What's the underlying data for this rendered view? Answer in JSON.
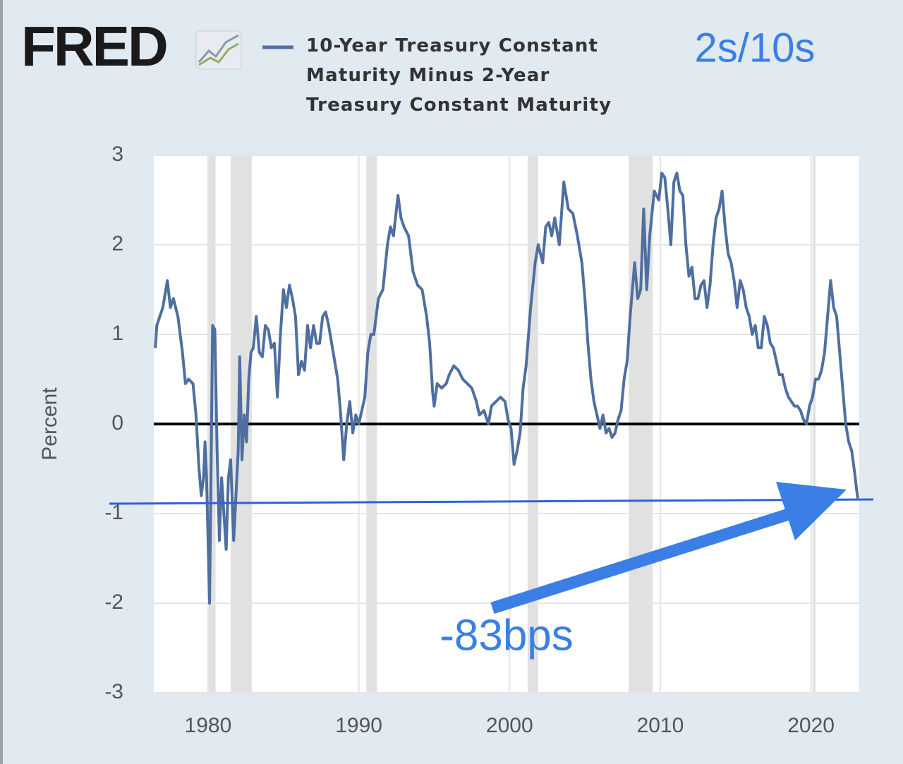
{
  "chart_data": {
    "type": "line",
    "logo": "FRED",
    "annotations": [
      "2s/10s",
      "-83bps"
    ],
    "ylabel": "Percent",
    "xlim": [
      1976.4,
      2023.2
    ],
    "ylim": [
      -3,
      3
    ],
    "xticks": [
      1980,
      1990,
      2000,
      2010,
      2020
    ],
    "yticks": [
      -3,
      -2,
      -1,
      0,
      1,
      2,
      3
    ],
    "grid": true,
    "zero_line": true,
    "recession_color": "#e1e1e1",
    "recessions": [
      [
        1980.0,
        1980.5
      ],
      [
        1981.5,
        1982.9
      ],
      [
        1990.5,
        1991.2
      ],
      [
        2001.2,
        2001.9
      ],
      [
        2007.9,
        2009.5
      ],
      [
        2020.1,
        2020.3
      ]
    ],
    "x": [
      1976.5,
      1976.6,
      1977.0,
      1977.3,
      1977.5,
      1977.7,
      1978.0,
      1978.3,
      1978.5,
      1978.7,
      1979.0,
      1979.2,
      1979.4,
      1979.55,
      1979.7,
      1979.8,
      1979.9,
      1980.0,
      1980.1,
      1980.2,
      1980.3,
      1980.45,
      1980.6,
      1980.75,
      1980.9,
      1981.05,
      1981.2,
      1981.35,
      1981.5,
      1981.7,
      1981.85,
      1982.0,
      1982.1,
      1982.25,
      1982.4,
      1982.55,
      1982.7,
      1982.85,
      1983.0,
      1983.2,
      1983.4,
      1983.6,
      1983.8,
      1984.0,
      1984.2,
      1984.4,
      1984.6,
      1984.8,
      1985.0,
      1985.2,
      1985.4,
      1985.6,
      1985.8,
      1986.0,
      1986.2,
      1986.4,
      1986.6,
      1986.8,
      1987.0,
      1987.2,
      1987.4,
      1987.6,
      1987.8,
      1988.0,
      1988.2,
      1988.4,
      1988.6,
      1988.8,
      1989.0,
      1989.2,
      1989.4,
      1989.6,
      1989.8,
      1990.0,
      1990.2,
      1990.4,
      1990.6,
      1990.8,
      1991.0,
      1991.3,
      1991.6,
      1991.9,
      1992.1,
      1992.3,
      1992.6,
      1992.8,
      1993.0,
      1993.3,
      1993.6,
      1993.9,
      1994.2,
      1994.5,
      1994.7,
      1994.9,
      1995.0,
      1995.2,
      1995.5,
      1995.8,
      1996.0,
      1996.3,
      1996.6,
      1996.9,
      1997.2,
      1997.5,
      1997.8,
      1998.0,
      1998.3,
      1998.6,
      1998.8,
      1999.1,
      1999.4,
      1999.7,
      1999.9,
      2000.1,
      2000.3,
      2000.5,
      2000.7,
      2000.9,
      2001.1,
      2001.4,
      2001.7,
      2001.9,
      2002.2,
      2002.4,
      2002.6,
      2002.8,
      2003.0,
      2003.3,
      2003.6,
      2003.9,
      2004.2,
      2004.5,
      2004.8,
      2005.0,
      2005.2,
      2005.4,
      2005.6,
      2005.8,
      2006.0,
      2006.2,
      2006.4,
      2006.6,
      2006.8,
      2007.0,
      2007.2,
      2007.4,
      2007.6,
      2007.8,
      2008.0,
      2008.3,
      2008.5,
      2008.7,
      2008.9,
      2009.1,
      2009.3,
      2009.6,
      2009.9,
      2010.1,
      2010.3,
      2010.5,
      2010.7,
      2010.9,
      2011.1,
      2011.3,
      2011.5,
      2011.7,
      2011.9,
      2012.1,
      2012.3,
      2012.5,
      2012.7,
      2012.9,
      2013.1,
      2013.3,
      2013.5,
      2013.7,
      2013.9,
      2014.1,
      2014.3,
      2014.5,
      2014.7,
      2014.9,
      2015.1,
      2015.3,
      2015.5,
      2015.7,
      2015.9,
      2016.1,
      2016.3,
      2016.5,
      2016.7,
      2016.9,
      2017.1,
      2017.3,
      2017.5,
      2017.7,
      2017.9,
      2018.1,
      2018.3,
      2018.5,
      2018.7,
      2018.9,
      2019.1,
      2019.3,
      2019.5,
      2019.7,
      2019.9,
      2020.1,
      2020.3,
      2020.5,
      2020.7,
      2020.9,
      2021.1,
      2021.3,
      2021.5,
      2021.7,
      2021.9,
      2022.1,
      2022.3,
      2022.5,
      2022.7,
      2022.9,
      2023.0,
      2023.1
    ],
    "series": [
      {
        "name": "10-Year Treasury Constant Maturity Minus 2-Year Treasury Constant Maturity",
        "color": "#4e6fa0",
        "values": [
          0.85,
          1.1,
          1.3,
          1.6,
          1.3,
          1.4,
          1.2,
          0.8,
          0.45,
          0.5,
          0.45,
          0.1,
          -0.5,
          -0.8,
          -0.6,
          -0.2,
          -0.6,
          -1.3,
          -2.0,
          -0.5,
          1.1,
          1.05,
          -0.3,
          -1.3,
          -0.6,
          -1.0,
          -1.4,
          -0.6,
          -0.4,
          -1.3,
          -0.8,
          -0.3,
          0.75,
          -0.4,
          0.1,
          -0.2,
          0.5,
          0.8,
          0.85,
          1.2,
          0.8,
          0.75,
          1.1,
          1.05,
          0.85,
          0.9,
          0.3,
          1.0,
          1.5,
          1.3,
          1.55,
          1.4,
          1.2,
          0.55,
          0.7,
          0.6,
          1.1,
          0.85,
          1.1,
          0.9,
          0.9,
          1.2,
          1.25,
          1.1,
          0.9,
          0.7,
          0.5,
          0.1,
          -0.4,
          0.0,
          0.25,
          -0.1,
          0.1,
          0.0,
          0.15,
          0.3,
          0.8,
          1.0,
          1.0,
          1.4,
          1.5,
          2.0,
          2.2,
          2.1,
          2.55,
          2.3,
          2.2,
          2.1,
          1.7,
          1.55,
          1.5,
          1.2,
          0.9,
          0.35,
          0.2,
          0.45,
          0.4,
          0.45,
          0.55,
          0.65,
          0.6,
          0.5,
          0.45,
          0.4,
          0.25,
          0.1,
          0.15,
          0.0,
          0.2,
          0.25,
          0.3,
          0.25,
          0.05,
          -0.05,
          -0.45,
          -0.3,
          -0.1,
          0.4,
          0.65,
          1.3,
          1.8,
          2.0,
          1.8,
          2.2,
          2.25,
          2.1,
          2.3,
          2.0,
          2.7,
          2.4,
          2.35,
          2.1,
          1.8,
          1.4,
          0.9,
          0.5,
          0.25,
          0.1,
          -0.05,
          0.1,
          -0.1,
          -0.05,
          -0.15,
          -0.1,
          0.05,
          0.15,
          0.5,
          0.7,
          1.2,
          1.8,
          1.4,
          1.5,
          2.4,
          1.5,
          2.1,
          2.6,
          2.5,
          2.8,
          2.75,
          2.4,
          2.0,
          2.7,
          2.8,
          2.6,
          2.55,
          2.0,
          1.65,
          1.75,
          1.4,
          1.4,
          1.55,
          1.6,
          1.3,
          1.55,
          2.0,
          2.3,
          2.4,
          2.6,
          2.2,
          1.9,
          1.8,
          1.6,
          1.3,
          1.6,
          1.5,
          1.3,
          1.2,
          1.0,
          1.1,
          0.85,
          0.85,
          1.2,
          1.1,
          0.9,
          0.85,
          0.7,
          0.55,
          0.55,
          0.4,
          0.3,
          0.25,
          0.2,
          0.2,
          0.15,
          0.05,
          0.0,
          0.2,
          0.3,
          0.5,
          0.5,
          0.6,
          0.8,
          1.2,
          1.6,
          1.3,
          1.2,
          0.8,
          0.4,
          0.0,
          -0.2,
          -0.3,
          -0.55,
          -0.7,
          -0.83
        ]
      }
    ]
  }
}
